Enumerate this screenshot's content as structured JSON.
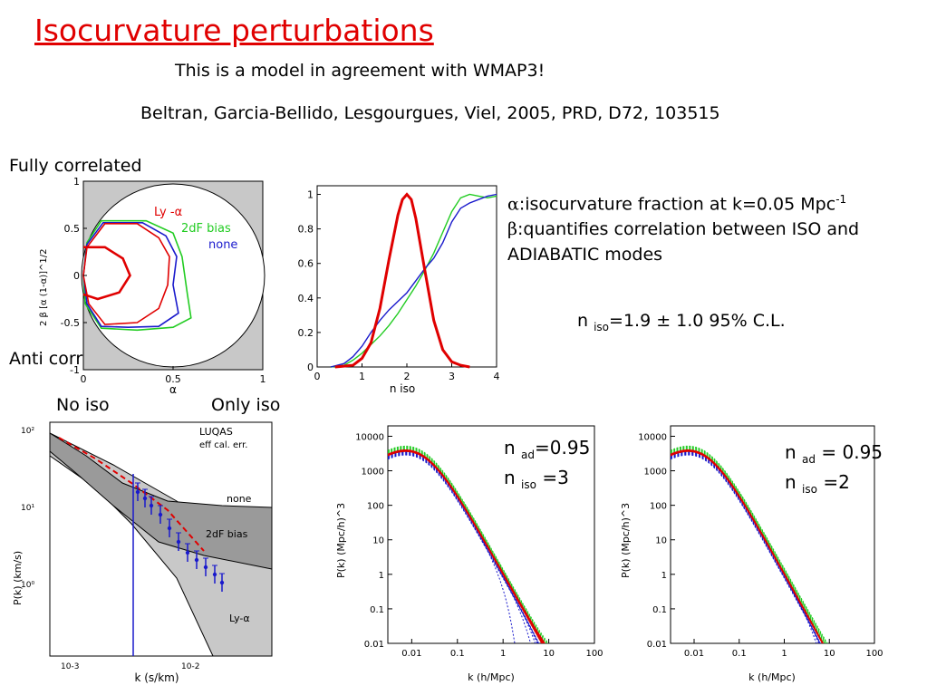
{
  "slide": {
    "title": "Isocurvature perturbations",
    "subtitle": "This is a model in agreement with WMAP3!",
    "reference": "Beltran, Garcia-Bellido, Lesgourgues, Viel, 2005, PRD, D72, 103515",
    "label_fully": "Fully correlated",
    "label_anti": "Anti correlated",
    "label_noiso": "No iso",
    "label_onlyiso": "Only iso",
    "alpha_sym": "α",
    "alpha_def": ":isocurvature fraction at k=0.05 Mpc",
    "alpha_def_sup": "-1",
    "beta_sym": "β",
    "beta_def": ":quantifies correlation between ISO and",
    "beta_def2": "ADIABATIC modes",
    "niso_n": "n ",
    "niso_sub": "iso",
    "niso_rest": "=1.9 ± 1.0 95% C.L.",
    "ann3_n": "n ",
    "ann3_ad": "ad",
    "ann3_adval": "=0.95",
    "ann3_iso": "iso",
    "ann3_isoval": " =3",
    "ann2_n": "n ",
    "ann2_ad": "ad",
    "ann2_adval": " = 0.95",
    "ann2_iso": "iso",
    "ann2_isoval": " =2"
  },
  "colors": {
    "title": "#e00000",
    "red": "#e00000",
    "green": "#22cc22",
    "blue": "#1a1acc",
    "shade": "#c8c8c8"
  },
  "chart_data": [
    {
      "id": "contour",
      "type": "scatter",
      "xlabel": "α",
      "ylabel": "2 β [α (1-α)]^1/2",
      "xlim": [
        0,
        1
      ],
      "ylim": [
        -1,
        1
      ],
      "xticks": [
        "0",
        "0.5",
        "1"
      ],
      "yticks": [
        "1",
        "0.5",
        "0",
        "-0.5",
        "-1"
      ],
      "legend": [
        "Ly -α",
        "2dF bias",
        "none"
      ],
      "series": [
        {
          "name": "Ly -α",
          "color": "#e00000",
          "outer": [
            [
              0.12,
              0.55
            ],
            [
              0.3,
              0.55
            ],
            [
              0.42,
              0.4
            ],
            [
              0.48,
              0.2
            ],
            [
              0.47,
              -0.1
            ],
            [
              0.42,
              -0.35
            ],
            [
              0.3,
              -0.5
            ],
            [
              0.12,
              -0.52
            ],
            [
              0.03,
              -0.3
            ],
            [
              0.0,
              0.0
            ],
            [
              0.02,
              0.3
            ]
          ],
          "inner": [
            [
              0.0,
              0.3
            ],
            [
              0.12,
              0.3
            ],
            [
              0.22,
              0.18
            ],
            [
              0.26,
              0.0
            ],
            [
              0.2,
              -0.18
            ],
            [
              0.08,
              -0.25
            ],
            [
              0.0,
              -0.2
            ]
          ]
        },
        {
          "name": "2dF bias",
          "color": "#22cc22",
          "outer": [
            [
              0.1,
              0.58
            ],
            [
              0.35,
              0.58
            ],
            [
              0.5,
              0.45
            ],
            [
              0.55,
              0.2
            ],
            [
              0.58,
              -0.2
            ],
            [
              0.6,
              -0.45
            ],
            [
              0.5,
              -0.55
            ],
            [
              0.3,
              -0.58
            ],
            [
              0.1,
              -0.56
            ],
            [
              0.01,
              -0.3
            ],
            [
              0.0,
              0.0
            ],
            [
              0.02,
              0.35
            ]
          ]
        },
        {
          "name": "none",
          "color": "#1a1acc",
          "outer": [
            [
              0.11,
              0.56
            ],
            [
              0.33,
              0.56
            ],
            [
              0.46,
              0.42
            ],
            [
              0.52,
              0.2
            ],
            [
              0.5,
              -0.1
            ],
            [
              0.53,
              -0.4
            ],
            [
              0.42,
              -0.54
            ],
            [
              0.25,
              -0.55
            ],
            [
              0.1,
              -0.54
            ],
            [
              0.02,
              -0.3
            ],
            [
              0.0,
              0.0
            ],
            [
              0.02,
              0.33
            ]
          ]
        }
      ]
    },
    {
      "id": "niso_posterior",
      "type": "line",
      "xlabel": "n iso",
      "xlim": [
        0,
        4
      ],
      "ylim": [
        0,
        1.05
      ],
      "xticks": [
        "0",
        "1",
        "2",
        "3",
        "4"
      ],
      "yticks": [
        "0",
        "0.2",
        "0.4",
        "0.6",
        "0.8",
        "1"
      ],
      "series": [
        {
          "name": "",
          "color": "#e00000",
          "x": [
            0.4,
            0.8,
            1.0,
            1.2,
            1.4,
            1.6,
            1.8,
            1.9,
            2.0,
            2.1,
            2.2,
            2.4,
            2.6,
            2.8,
            3.0,
            3.2,
            3.4
          ],
          "y": [
            0.0,
            0.01,
            0.05,
            0.14,
            0.34,
            0.62,
            0.88,
            0.97,
            1.0,
            0.97,
            0.86,
            0.56,
            0.27,
            0.1,
            0.03,
            0.01,
            0.0
          ]
        },
        {
          "name": "",
          "color": "#1a1acc",
          "x": [
            0.3,
            0.6,
            0.8,
            1.0,
            1.2,
            1.4,
            1.6,
            1.8,
            2.0,
            2.2,
            2.4,
            2.6,
            2.8,
            3.0,
            3.2,
            3.4,
            3.6,
            3.8,
            4.0
          ],
          "y": [
            0.0,
            0.02,
            0.06,
            0.12,
            0.2,
            0.27,
            0.33,
            0.38,
            0.43,
            0.5,
            0.57,
            0.63,
            0.72,
            0.84,
            0.92,
            0.95,
            0.97,
            0.99,
            1.0
          ]
        },
        {
          "name": "",
          "color": "#22cc22",
          "x": [
            0.3,
            0.6,
            0.8,
            1.0,
            1.2,
            1.4,
            1.6,
            1.8,
            2.0,
            2.2,
            2.4,
            2.6,
            2.8,
            3.0,
            3.2,
            3.4,
            3.6,
            3.8,
            4.0
          ],
          "y": [
            0.0,
            0.01,
            0.04,
            0.08,
            0.13,
            0.18,
            0.24,
            0.31,
            0.39,
            0.47,
            0.56,
            0.66,
            0.78,
            0.9,
            0.98,
            1.0,
            0.99,
            0.98,
            0.99
          ]
        }
      ]
    },
    {
      "id": "lyalpha",
      "type": "line",
      "xlabel": "k (s/km)",
      "ylabel": "P(k) (km/s)",
      "xticks": [
        "10-3",
        "10-2"
      ],
      "yticks": [
        "10²",
        "10¹",
        "10⁰"
      ],
      "legend": [
        "LUQAS",
        "eff cal. err."
      ],
      "band_labels": [
        "none",
        "2dF bias",
        "Ly-α"
      ]
    },
    {
      "id": "pk_niso3",
      "type": "line",
      "xlabel": "k (h/Mpc)",
      "ylabel": "P(k) (Mpc/h)^3",
      "xscale": "log",
      "yscale": "log",
      "xlim": [
        0.003,
        100
      ],
      "ylim": [
        0.01,
        20000
      ],
      "xticks": [
        "0.01",
        "0.1",
        "1",
        "10",
        "100"
      ],
      "yticks": [
        "10000",
        "1000",
        "100",
        "10",
        "1",
        "0.1",
        "0.01"
      ],
      "n_iso": 3
    },
    {
      "id": "pk_niso2",
      "type": "line",
      "xlabel": "k (h/Mpc)",
      "ylabel": "P(k) (Mpc/h)^3",
      "xscale": "log",
      "yscale": "log",
      "xlim": [
        0.003,
        100
      ],
      "ylim": [
        0.01,
        20000
      ],
      "xticks": [
        "0.01",
        "0.1",
        "1",
        "10",
        "100"
      ],
      "yticks": [
        "10000",
        "1000",
        "100",
        "10",
        "1",
        "0.1",
        "0.01"
      ],
      "n_iso": 2
    }
  ]
}
